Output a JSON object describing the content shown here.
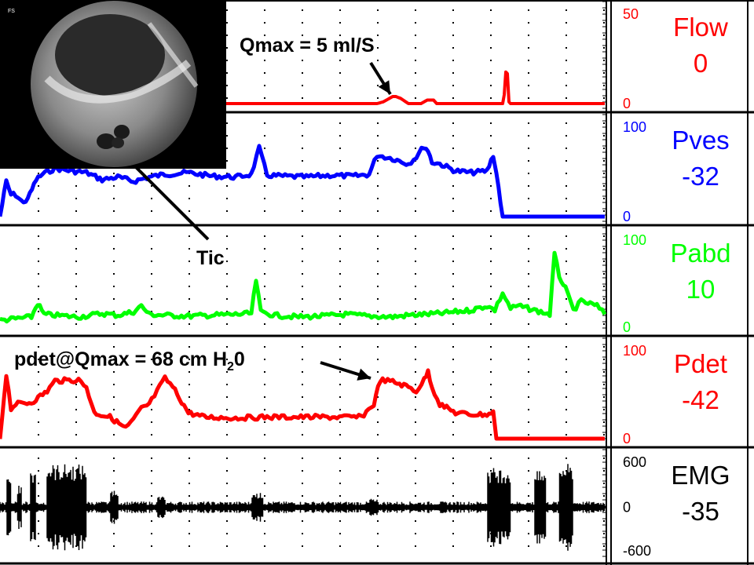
{
  "colors": {
    "flow": "#ff0000",
    "pves": "#0000ff",
    "pabd": "#00ff00",
    "pdet": "#ff0000",
    "emg": "#000000",
    "grid": "#000000",
    "background": "#ffffff"
  },
  "annotations": {
    "qmax": "Qmax = 5 ml/S",
    "tic": "Tic",
    "pdet_qmax_main": "pdet@Qmax = 68 cm H",
    "pdet_qmax_sub": "2",
    "pdet_qmax_end": "0"
  },
  "fluoro_image": {
    "corner_label": "FS",
    "description_icon": "bladder-fluoroscopy-icon"
  },
  "chart_data": [
    {
      "type": "line",
      "name": "Flow",
      "channel_label": "Flow",
      "current_value": "0",
      "scale_top": "50",
      "scale_bottom": "0",
      "ylim": [
        0,
        50
      ],
      "x": [
        0,
        480,
        488,
        496,
        500,
        504,
        510,
        520,
        536,
        544,
        552,
        556,
        640,
        642,
        644,
        646,
        648,
        650,
        770
      ],
      "values": [
        0,
        0,
        1,
        3,
        4,
        4,
        3,
        0,
        0,
        2,
        2,
        0,
        0,
        5,
        18,
        17,
        1,
        0,
        0
      ]
    },
    {
      "type": "line",
      "name": "Pves",
      "channel_label": "Pves",
      "current_value": "-32",
      "scale_top": "100",
      "scale_bottom": "0",
      "ylim": [
        0,
        100
      ],
      "x": [
        0,
        8,
        14,
        20,
        30,
        38,
        46,
        54,
        70,
        90,
        110,
        130,
        150,
        170,
        190,
        210,
        240,
        270,
        300,
        320,
        330,
        340,
        360,
        390,
        420,
        450,
        470,
        480,
        490,
        500,
        520,
        530,
        540,
        545,
        550,
        560,
        580,
        600,
        620,
        628,
        632,
        640,
        700,
        770
      ],
      "values": [
        0,
        40,
        25,
        25,
        15,
        25,
        42,
        48,
        55,
        52,
        50,
        42,
        45,
        40,
        45,
        48,
        50,
        46,
        45,
        48,
        78,
        47,
        46,
        45,
        47,
        46,
        48,
        70,
        68,
        66,
        60,
        68,
        80,
        75,
        62,
        60,
        52,
        50,
        52,
        70,
        50,
        0,
        0,
        0
      ]
    },
    {
      "type": "line",
      "name": "Pabd",
      "channel_label": "Pabd",
      "current_value": "10",
      "scale_top": "100",
      "scale_bottom": "0",
      "ylim": [
        0,
        100
      ],
      "x": [
        0,
        20,
        40,
        48,
        56,
        70,
        100,
        130,
        150,
        170,
        180,
        190,
        210,
        240,
        270,
        300,
        320,
        326,
        332,
        350,
        380,
        410,
        440,
        470,
        500,
        520,
        540,
        560,
        580,
        600,
        620,
        630,
        640,
        650,
        660,
        680,
        700,
        706,
        712,
        720,
        730,
        740,
        760,
        770
      ],
      "values": [
        8,
        10,
        12,
        28,
        15,
        14,
        12,
        16,
        14,
        18,
        25,
        15,
        14,
        13,
        14,
        15,
        16,
        55,
        18,
        14,
        12,
        13,
        15,
        13,
        12,
        14,
        15,
        16,
        18,
        20,
        25,
        20,
        40,
        22,
        25,
        20,
        15,
        85,
        60,
        45,
        20,
        30,
        25,
        15
      ]
    },
    {
      "type": "line",
      "name": "Pdet",
      "channel_label": "Pdet",
      "current_value": "-42",
      "scale_top": "100",
      "scale_bottom": "0",
      "ylim": [
        0,
        100
      ],
      "x": [
        0,
        8,
        14,
        20,
        40,
        60,
        70,
        100,
        110,
        120,
        140,
        160,
        170,
        180,
        190,
        200,
        210,
        220,
        240,
        260,
        300,
        340,
        380,
        420,
        460,
        476,
        484,
        500,
        520,
        530,
        540,
        545,
        550,
        560,
        580,
        600,
        620,
        628,
        632,
        640,
        700,
        770
      ],
      "values": [
        0,
        75,
        35,
        40,
        42,
        55,
        67,
        68,
        60,
        30,
        25,
        12,
        22,
        35,
        40,
        55,
        70,
        60,
        30,
        25,
        24,
        25,
        25,
        25,
        25,
        40,
        68,
        66,
        60,
        55,
        68,
        78,
        60,
        40,
        30,
        28,
        28,
        30,
        0,
        0,
        0,
        0
      ]
    },
    {
      "type": "line",
      "name": "EMG",
      "channel_label": "EMG",
      "current_value": "-35",
      "scale_top": "600",
      "scale_mid": "0",
      "scale_bottom": "-600",
      "ylim": [
        -600,
        600
      ],
      "bursts": [
        {
          "from": 8,
          "to": 14,
          "amplitude": 500
        },
        {
          "from": 22,
          "to": 28,
          "amplitude": 300
        },
        {
          "from": 38,
          "to": 46,
          "amplitude": 550
        },
        {
          "from": 60,
          "to": 110,
          "amplitude": 600
        },
        {
          "from": 140,
          "to": 150,
          "amplitude": 250
        },
        {
          "from": 200,
          "to": 210,
          "amplitude": 150
        },
        {
          "from": 320,
          "to": 335,
          "amplitude": 200
        },
        {
          "from": 470,
          "to": 480,
          "amplitude": 120
        },
        {
          "from": 620,
          "to": 650,
          "amplitude": 550
        },
        {
          "from": 680,
          "to": 695,
          "amplitude": 500
        },
        {
          "from": 712,
          "to": 730,
          "amplitude": 600
        }
      ],
      "baseline_noise": 80
    }
  ]
}
